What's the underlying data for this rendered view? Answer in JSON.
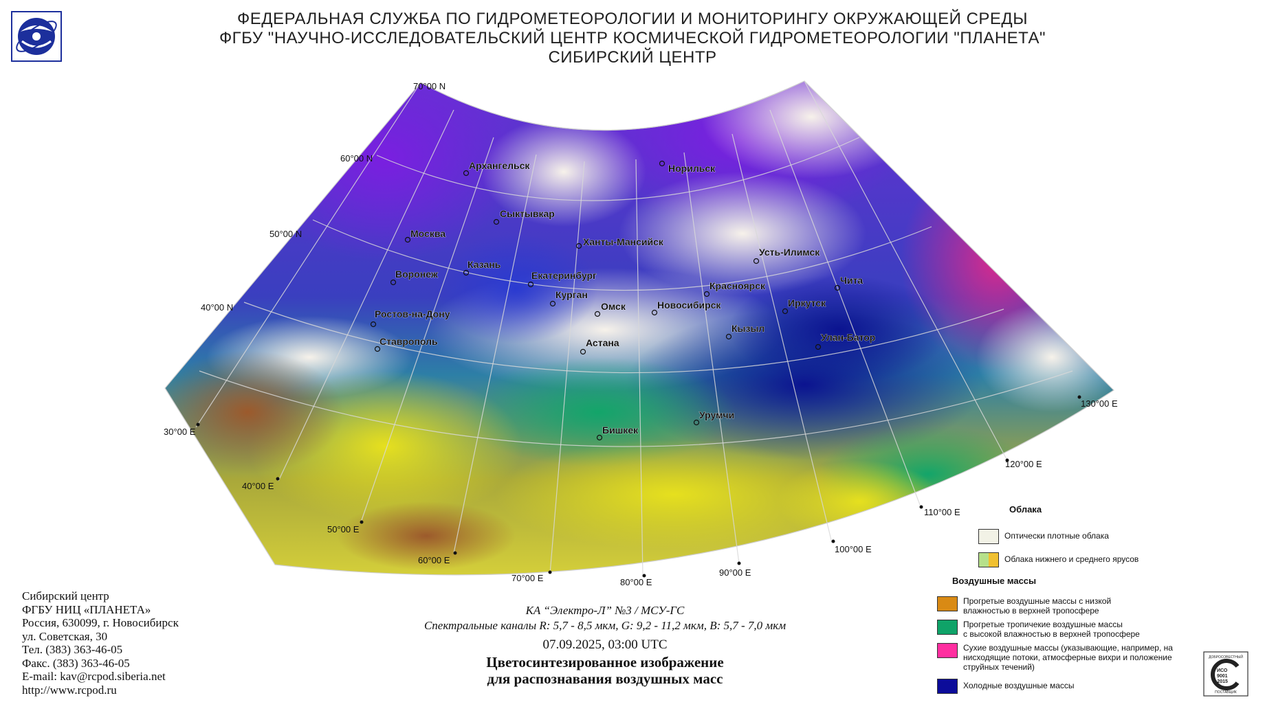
{
  "header": {
    "line1": "ФЕДЕРАЛЬНАЯ СЛУЖБА ПО ГИДРОМЕТЕОРОЛОГИИ И МОНИТОРИНГУ ОКРУЖАЮЩЕЙ СРЕДЫ",
    "line2": "ФГБУ \"НАУЧНО-ИССЛЕДОВАТЕЛЬСКИЙ ЦЕНТР КОСМИЧЕСКОЙ ГИДРОМЕТЕОРОЛОГИИ \"ПЛАНЕТА\"",
    "line3": "СИБИРСКИЙ ЦЕНТР"
  },
  "map": {
    "lat_labels": [
      "70°00 N",
      "60°00 N",
      "50°00 N",
      "40°00 N"
    ],
    "lon_labels": [
      "30°00 E",
      "40°00 E",
      "50°00 E",
      "60°00 E",
      "70°00 E",
      "80°00 E",
      "90°00 E",
      "100°00 E",
      "110°00 E",
      "120°00 E",
      "130°00 E"
    ],
    "cities": [
      "Архангельск",
      "Норильск",
      "Сыктывкар",
      "Москва",
      "Ханты-Мансийск",
      "Усть-Илимск",
      "Казань",
      "Воронеж",
      "Екатеринбург",
      "Красноярск",
      "Чита",
      "Курган",
      "Омск",
      "Новосибирск",
      "Иркутск",
      "Ростов-на-Дону",
      "Кызыл",
      "Улан-Батор",
      "Ставрополь",
      "Астана",
      "Урумчи",
      "Бишкек"
    ]
  },
  "footer": {
    "line1": "Сибирский центр",
    "line2": "ФГБУ НИЦ «ПЛАНЕТА»",
    "line3": "Россия, 630099, г. Новосибирск",
    "line4": "ул. Советская, 30",
    "line5": "Тел. (383) 363-46-05",
    "line6": "Факс. (383) 363-46-05",
    "line7": "E-mail: kav@rcpod.siberia.net",
    "line8": "http://www.rcpod.ru"
  },
  "info": {
    "satellite": "КА “Электро-Л” №3 / МСУ-ГС",
    "channels": "Спектральные каналы R: 5,7 - 8,5 мкм, G: 9,2 - 11,2 мкм, B: 5,7 - 7,0 мкм",
    "datetime": "07.09.2025, 03:00 UTC",
    "caption1": "Цветосинтезированное изображение",
    "caption2": "для распознавания воздушных масс"
  },
  "legend": {
    "clouds_title": "Облака",
    "dense_clouds": "Оптически плотные облака",
    "low_mid_clouds": "Облака нижнего и среднего ярусов",
    "air_title": "Воздушные массы",
    "warm_low1": "Прогретые воздушные массы с низкой",
    "warm_low2": "влажностью в верхней тропосфере",
    "tropical1": "Прогретые тропичекие воздушные массы",
    "tropical2": "с высокой влажностью в верхней тропосфере",
    "dry1": "Сухие воздушные массы (указывающие, например, на",
    "dry2": "нисходящие потоки, атмосферные вихри и положение",
    "dry3": "струйных течений)",
    "cold": "Холодные воздушные массы",
    "colors": {
      "dense": "#f2f2e6",
      "low_a": "#b6e08a",
      "low_b": "#f0c030",
      "warm_low": "#d98a14",
      "tropical": "#0fa368",
      "dry": "#ff2fa0",
      "cold": "#0c0c9a"
    }
  },
  "cert": {
    "top": "ДОБРОСОВЕСТНЫЙ",
    "iso1": "ИСО",
    "iso2": "9001",
    "iso3": "-2015",
    "bottom": "ПОСТАВЩИК"
  }
}
